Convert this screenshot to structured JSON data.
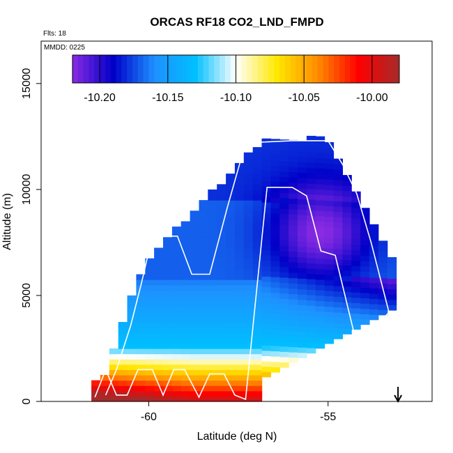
{
  "chart_data": {
    "type": "heatmap",
    "title": "ORCAS RF18 CO2_LND_FMPD",
    "annotations": {
      "flts": "Flts: 18",
      "mmdd": "MMDD: 0225"
    },
    "xlabel": "Latitude (deg N)",
    "ylabel": "Altitude (m)",
    "xlim": [
      -63,
      -52.1
    ],
    "ylim": [
      0,
      17000
    ],
    "x_ticks": [
      -60,
      -55
    ],
    "x_tick_labels": [
      "-60",
      "-55"
    ],
    "y_ticks": [
      0,
      5000,
      10000,
      15000
    ],
    "y_tick_labels": [
      "0",
      "5000",
      "10000",
      "15000"
    ],
    "colorbar": {
      "min": -10.22,
      "max": -9.98,
      "ticks": [
        -10.2,
        -10.15,
        -10.1,
        -10.05,
        -10.0
      ],
      "tick_labels": [
        "-10.20",
        "-10.15",
        "-10.10",
        "-10.05",
        "-10.00"
      ],
      "colors": [
        "#8a2be2",
        "#0000c8",
        "#1e90ff",
        "#00bfff",
        "#ffffff",
        "#ffe800",
        "#ff8c00",
        "#ff0000",
        "#a52a2a"
      ]
    },
    "arrow_marker_lat": -53.05,
    "flight_track": [
      [
        -61.2,
        300
      ],
      [
        -60.9,
        1500
      ],
      [
        -60.5,
        3600
      ],
      [
        -60.2,
        5600
      ],
      [
        -59.9,
        7800
      ],
      [
        -59.2,
        7800
      ],
      [
        -58.8,
        6000
      ],
      [
        -58.3,
        6000
      ],
      [
        -57.8,
        9200
      ],
      [
        -57.3,
        12200
      ],
      [
        -56.0,
        12300
      ],
      [
        -55.0,
        12300
      ],
      [
        -54.6,
        11200
      ],
      [
        -54.2,
        9800
      ],
      [
        -53.8,
        7500
      ],
      [
        -53.3,
        4200
      ],
      [
        -54.2,
        2700
      ],
      [
        -54.8,
        6900
      ],
      [
        -55.2,
        7100
      ],
      [
        -55.6,
        9700
      ],
      [
        -56.0,
        10100
      ],
      [
        -56.7,
        10100
      ],
      [
        -57.3,
        100
      ],
      [
        -57.6,
        300
      ],
      [
        -57.9,
        1300
      ],
      [
        -58.3,
        1300
      ],
      [
        -58.6,
        200
      ],
      [
        -59.0,
        1500
      ],
      [
        -59.3,
        1500
      ],
      [
        -59.6,
        300
      ],
      [
        -59.9,
        1500
      ],
      [
        -60.3,
        1500
      ],
      [
        -60.6,
        300
      ],
      [
        -60.9,
        300
      ],
      [
        -61.2,
        1500
      ],
      [
        -61.5,
        200
      ]
    ]
  }
}
